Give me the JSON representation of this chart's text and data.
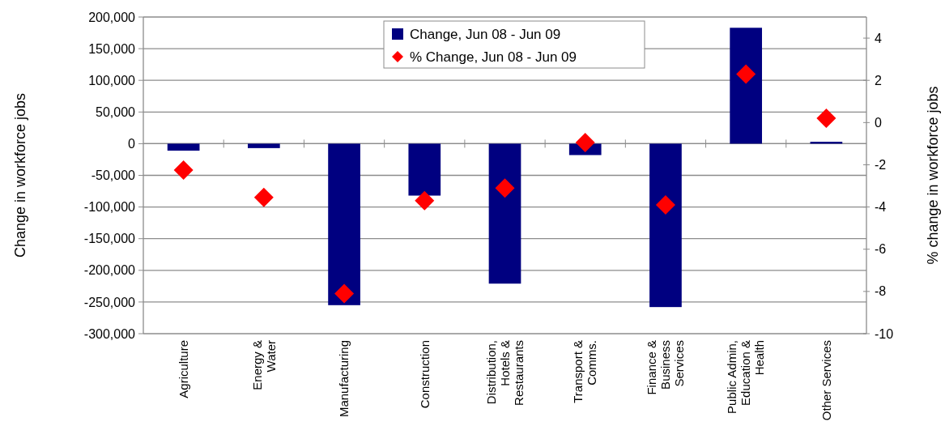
{
  "chart_data": {
    "type": "bar",
    "categories": [
      "Agriculture",
      "Energy &\nWater",
      "Manufacturing",
      "Construction",
      "Distribution,\nHotels &\nRestaurants",
      "Transport &\nComms.",
      "Finance &\nBusiness\nServices",
      "Public Admin,\nEducation &\nHealth",
      "Other Services"
    ],
    "series": [
      {
        "name": "Change, Jun 08 - Jun 09",
        "color": "#000080",
        "values": [
          -11000,
          -7000,
          -255000,
          -82000,
          -221000,
          -18000,
          -258000,
          183000,
          3000
        ]
      },
      {
        "name": "% Change, Jun 08 - Jun 09",
        "type": "scatter",
        "axis": "y2",
        "marker": "diamond",
        "color": "#ff0000",
        "values": [
          -2.25,
          -3.55,
          -8.1,
          -3.7,
          -3.1,
          -0.95,
          -3.9,
          2.3,
          0.2
        ]
      }
    ],
    "ylabel": "Change in workforce jobs",
    "y2label": "% change in workforce jobs",
    "ylim": [
      -300000,
      200000
    ],
    "yticks": [
      {
        "value": -300000,
        "label": "-300,000"
      },
      {
        "value": -250000,
        "label": "-250,000"
      },
      {
        "value": -200000,
        "label": "-200,000"
      },
      {
        "value": -150000,
        "label": "-150,000"
      },
      {
        "value": -100000,
        "label": "-100,000"
      },
      {
        "value": -50000,
        "label": "-50,000"
      },
      0,
      {
        "value": 50000,
        "label": "50,000"
      },
      {
        "value": 100000,
        "label": "100,000"
      },
      {
        "value": 150000,
        "label": "150,000"
      },
      {
        "value": 200000,
        "label": "200,000"
      }
    ],
    "y2lim": [
      -10,
      5
    ],
    "y2ticks": [
      -10,
      -8,
      -6,
      -4,
      -2,
      0,
      2,
      4
    ],
    "grid": "y",
    "legend": "top"
  }
}
